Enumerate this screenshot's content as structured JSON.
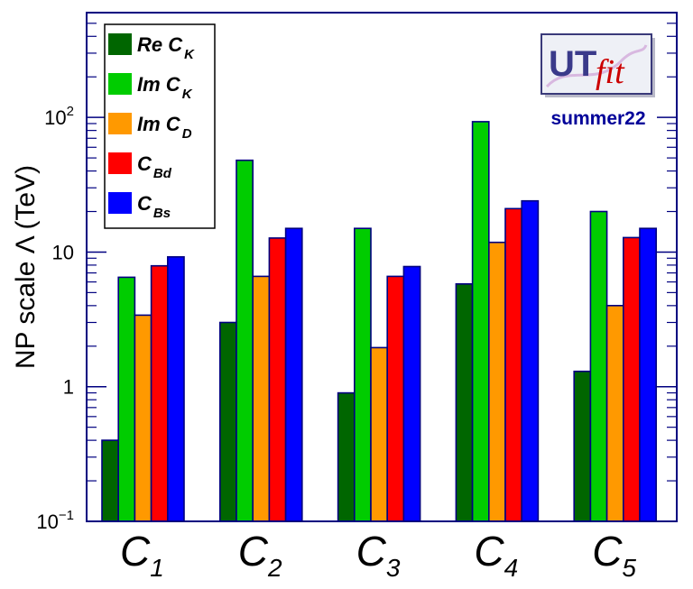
{
  "chart_data": {
    "type": "bar",
    "scale": "log",
    "ylabel": "NP scale Λ (TeV)",
    "ylim": [
      0.1,
      600
    ],
    "yticks": [
      {
        "value": 0.1,
        "mantissa": "10",
        "exp": "−1"
      },
      {
        "value": 1,
        "mantissa": "1",
        "exp": ""
      },
      {
        "value": 10,
        "mantissa": "10",
        "exp": ""
      },
      {
        "value": 100,
        "mantissa": "10",
        "exp": "2"
      }
    ],
    "categories": [
      {
        "base": "C",
        "sub": "1"
      },
      {
        "base": "C",
        "sub": "2"
      },
      {
        "base": "C",
        "sub": "3"
      },
      {
        "base": "C",
        "sub": "4"
      },
      {
        "base": "C",
        "sub": "5"
      }
    ],
    "series": [
      {
        "name": "Re C_K",
        "label_main": "Re C",
        "label_sub": "K",
        "color": "#006600",
        "values": [
          0.4,
          3.0,
          0.9,
          5.8,
          1.3
        ]
      },
      {
        "name": "Im C_K",
        "label_main": "Im C",
        "label_sub": "K",
        "color": "#00cc00",
        "values": [
          6.5,
          48,
          15,
          93,
          20
        ]
      },
      {
        "name": "Im C_D",
        "label_main": "Im C",
        "label_sub": "D",
        "color": "#ff9900",
        "values": [
          3.4,
          6.6,
          1.95,
          11.8,
          4.0
        ]
      },
      {
        "name": "C_Bd",
        "label_main": "C",
        "label_sub": "Bd",
        "color": "#ff0000",
        "values": [
          7.9,
          12.7,
          6.6,
          21,
          12.8
        ]
      },
      {
        "name": "C_Bs",
        "label_main": "C",
        "label_sub": "Bs",
        "color": "#0000ff",
        "values": [
          9.2,
          15,
          7.8,
          24,
          15
        ]
      }
    ],
    "bar_edge_color": "#000080",
    "axis_color": "#000080"
  },
  "logo": {
    "u": "UT",
    "fit": "fit",
    "subtitle": "summer22",
    "subtitle_color": "#000099"
  }
}
